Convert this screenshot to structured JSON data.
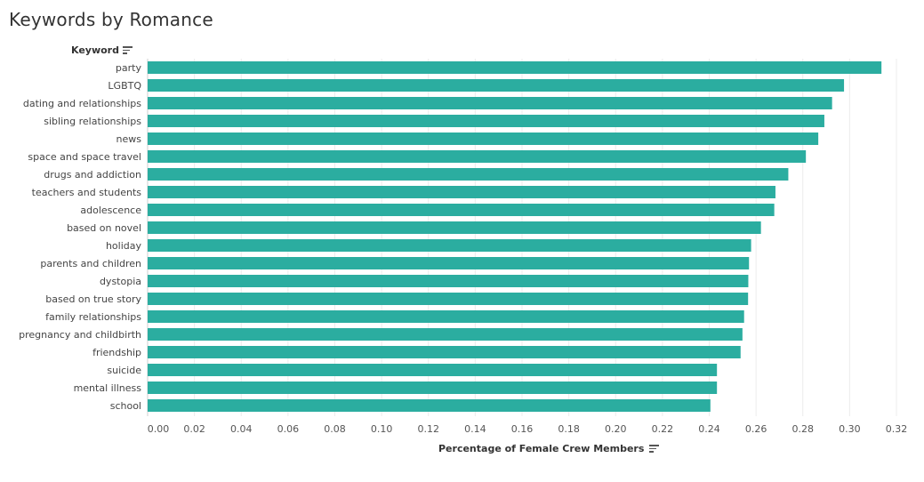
{
  "colors": {
    "bar": "#2bada0",
    "grid": "#ececec",
    "axis": "#cfcfcf"
  },
  "chart_data": {
    "type": "bar",
    "orientation": "horizontal",
    "title": "Keywords by Romance",
    "ylabel": "Keyword",
    "xlabel": "Percentage of Female Crew Members",
    "xlim": [
      0,
      0.32
    ],
    "xticks": [
      "0.00",
      "0.02",
      "0.04",
      "0.06",
      "0.08",
      "0.10",
      "0.12",
      "0.14",
      "0.16",
      "0.18",
      "0.20",
      "0.22",
      "0.24",
      "0.26",
      "0.28",
      "0.30",
      "0.32"
    ],
    "grid": true,
    "categories": [
      "party",
      "LGBTQ",
      "dating and relationships",
      "sibling relationships",
      "news",
      "space and space travel",
      "drugs and addiction",
      "teachers and students",
      "adolescence",
      "based on novel",
      "holiday",
      "parents and children",
      "dystopia",
      "based on true story",
      "family relationships",
      "pregnancy and childbirth",
      "friendship",
      "suicide",
      "mental illness",
      "school"
    ],
    "values": [
      0.3136,
      0.2976,
      0.2925,
      0.2892,
      0.2866,
      0.2813,
      0.2738,
      0.2683,
      0.2678,
      0.2621,
      0.2579,
      0.257,
      0.2567,
      0.2566,
      0.2549,
      0.2542,
      0.2534,
      0.2433,
      0.2433,
      0.2405
    ]
  }
}
